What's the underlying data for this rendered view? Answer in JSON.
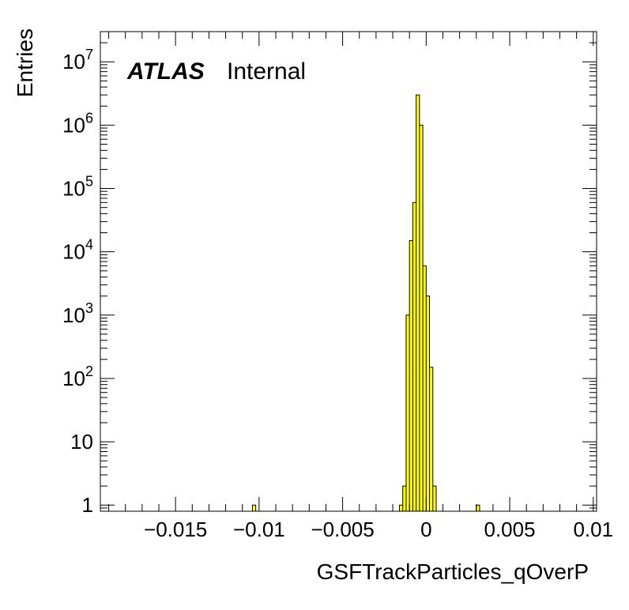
{
  "chart_data": {
    "type": "bar",
    "xlabel": "GSFTrackParticles_qOverP",
    "ylabel": "Entries",
    "xlim": [
      -0.0195,
      0.0102
    ],
    "ylim": [
      0.8,
      30000000
    ],
    "y_scale": "log",
    "grid": false,
    "bin_width": 0.0002,
    "fill_color": "#ffff00",
    "x_ticks": [
      {
        "value": -0.015,
        "label": "−0.015"
      },
      {
        "value": -0.01,
        "label": "−0.01"
      },
      {
        "value": -0.005,
        "label": "−0.005"
      },
      {
        "value": 0,
        "label": "0"
      },
      {
        "value": 0.005,
        "label": "0.005"
      },
      {
        "value": 0.01,
        "label": "0.01"
      }
    ],
    "y_ticks": [
      {
        "value": 1,
        "base": "1",
        "exp": ""
      },
      {
        "value": 10,
        "base": "10",
        "exp": ""
      },
      {
        "value": 100,
        "base": "10",
        "exp": "2"
      },
      {
        "value": 1000,
        "base": "10",
        "exp": "3"
      },
      {
        "value": 10000,
        "base": "10",
        "exp": "4"
      },
      {
        "value": 100000,
        "base": "10",
        "exp": "5"
      },
      {
        "value": 1000000,
        "base": "10",
        "exp": "6"
      },
      {
        "value": 10000000,
        "base": "10",
        "exp": "7"
      }
    ],
    "bins": [
      {
        "x_low": -0.0104,
        "x_high": -0.0102,
        "count": 1
      },
      {
        "x_low": -0.0016,
        "x_high": -0.0014,
        "count": 1
      },
      {
        "x_low": -0.0014,
        "x_high": -0.0012,
        "count": 2
      },
      {
        "x_low": -0.0012,
        "x_high": -0.001,
        "count": 1000
      },
      {
        "x_low": -0.001,
        "x_high": -0.0008,
        "count": 15000
      },
      {
        "x_low": -0.0008,
        "x_high": -0.0006,
        "count": 60000
      },
      {
        "x_low": -0.0006,
        "x_high": -0.0004,
        "count": 3000000
      },
      {
        "x_low": -0.0004,
        "x_high": -0.0002,
        "count": 1000000
      },
      {
        "x_low": -0.0002,
        "x_high": 0.0,
        "count": 6000
      },
      {
        "x_low": 0.0,
        "x_high": 0.0002,
        "count": 2000
      },
      {
        "x_low": 0.0002,
        "x_high": 0.0004,
        "count": 150
      },
      {
        "x_low": 0.0004,
        "x_high": 0.0006,
        "count": 2
      },
      {
        "x_low": 0.003,
        "x_high": 0.0032,
        "count": 1
      }
    ]
  },
  "annotation": {
    "experiment": "ATLAS",
    "status": "Internal"
  }
}
